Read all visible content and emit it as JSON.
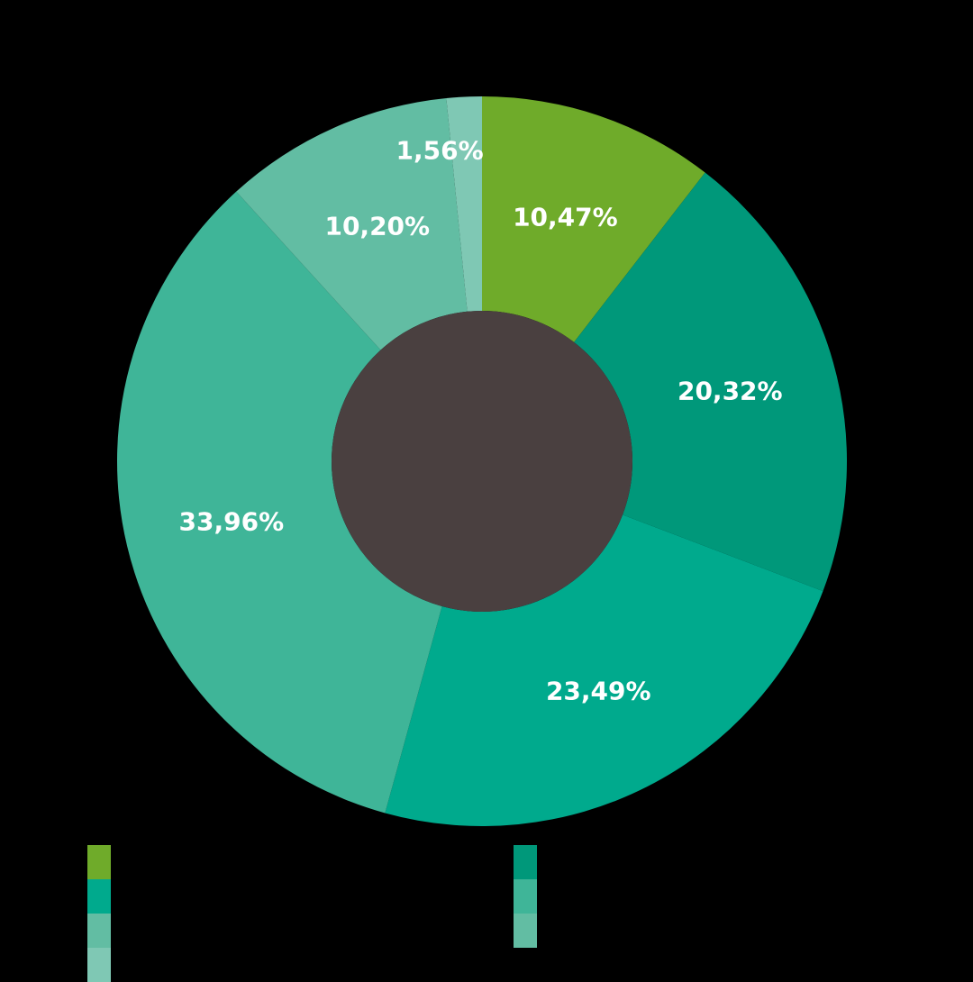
{
  "chart_data": {
    "type": "pie",
    "subtype": "donut",
    "title": "",
    "start_angle_deg": 0,
    "direction": "clockwise",
    "slices": [
      {
        "label": "",
        "value": 10.47,
        "display": "10,47%",
        "color": "#6fab2a"
      },
      {
        "label": "",
        "value": 20.32,
        "display": "20,32%",
        "color": "#00987a"
      },
      {
        "label": "",
        "value": 23.49,
        "display": "23,49%",
        "color": "#00aa8d"
      },
      {
        "label": "",
        "value": 33.96,
        "display": "33,96%",
        "color": "#3fb598"
      },
      {
        "label": "",
        "value": 10.2,
        "display": "10,20%",
        "color": "#62bda3"
      },
      {
        "label": "",
        "value": 1.56,
        "display": "1,56%",
        "color": "#7fc8b4"
      }
    ],
    "center": [
      535,
      512
    ],
    "outer_radius": 405,
    "inner_radius": 167,
    "hole_color": "#4a4040",
    "legend_position": "bottom",
    "legend_note": "legend labels rendered black on black; text not legible"
  },
  "legend": {
    "left": [
      {
        "color": "#6fab2a",
        "label": ""
      },
      {
        "color": "#00aa8d",
        "label": ""
      },
      {
        "color": "#62bda3",
        "label": ""
      },
      {
        "color": "#7fc8b4",
        "label": ""
      }
    ],
    "right": [
      {
        "color": "#00987a",
        "label": ""
      },
      {
        "color": "#3fb598",
        "label": ""
      },
      {
        "color": "#62bda3",
        "label": ""
      }
    ]
  }
}
